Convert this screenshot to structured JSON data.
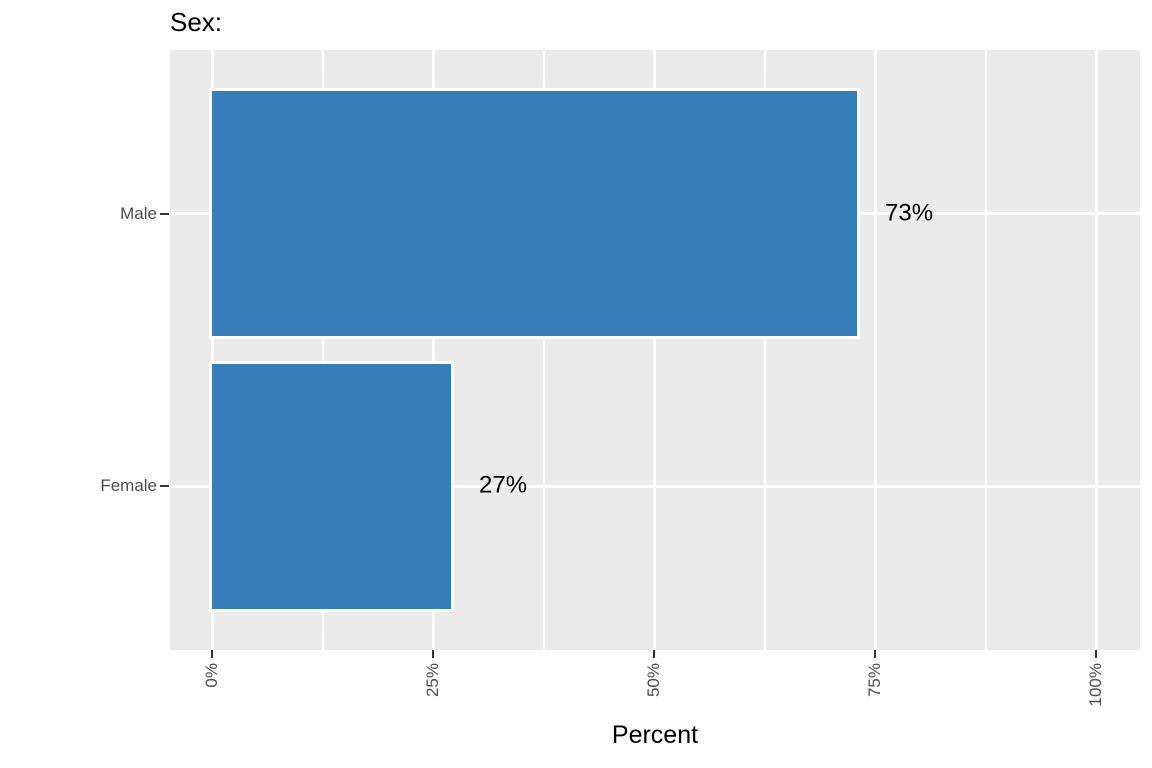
{
  "chart_data": {
    "type": "bar",
    "orientation": "horizontal",
    "title": "Sex:",
    "xlabel": "Percent",
    "ylabel": "",
    "categories": [
      "Male",
      "Female"
    ],
    "values": [
      73,
      27
    ],
    "value_labels": [
      "73%",
      "27%"
    ],
    "x_ticks": {
      "values": [
        0,
        25,
        50,
        75,
        100
      ],
      "labels": [
        "0%",
        "25%",
        "50%",
        "75%",
        "100%"
      ]
    },
    "x_minor_ticks": [
      12.5,
      37.5,
      62.5,
      87.5
    ],
    "xlim": [
      0,
      100
    ],
    "grid": "on",
    "legend": "none",
    "colors": {
      "bar_fill": "#377EB8",
      "bar_border": "#FFFFFF",
      "panel_background": "#EBEBEB",
      "gridline": "#FFFFFF",
      "axis_text": "#4D4D4D",
      "tick_mark": "#333333",
      "title_text": "#000000",
      "value_label": "#000000"
    }
  }
}
